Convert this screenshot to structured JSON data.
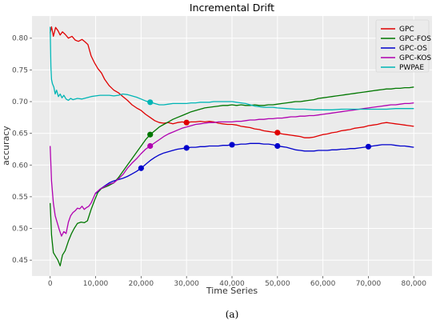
{
  "chart_data": {
    "type": "line",
    "title": "Incremental Drift",
    "xlabel": "Time Series",
    "ylabel": "accuracy",
    "caption": "(a)",
    "xlim": [
      -4000,
      84000
    ],
    "ylim": [
      0.425,
      0.835
    ],
    "xticks": [
      0,
      10000,
      20000,
      30000,
      40000,
      50000,
      60000,
      70000,
      80000
    ],
    "xtick_labels": [
      "0",
      "10,000",
      "20,000",
      "30,000",
      "40,000",
      "50,000",
      "60,000",
      "70,000",
      "80,000"
    ],
    "yticks": [
      0.45,
      0.5,
      0.55,
      0.6,
      0.65,
      0.7,
      0.75,
      0.8
    ],
    "ytick_labels": [
      "0.45",
      "0.50",
      "0.55",
      "0.60",
      "0.65",
      "0.70",
      "0.75",
      "0.80"
    ],
    "grid": true,
    "background": "#ebebeb",
    "legend_position": "top-right",
    "series": [
      {
        "name": "GPC",
        "color": "#e00000",
        "x": [
          0,
          300,
          700,
          1200,
          1700,
          2200,
          2700,
          3300,
          4000,
          4800,
          5500,
          6200,
          7000,
          7700,
          8300,
          9000,
          9700,
          10500,
          11300,
          12000,
          13000,
          14000,
          15000,
          16000,
          17000,
          18000,
          19000,
          20000,
          21000,
          22000,
          23000,
          24000,
          25000,
          26000,
          27000,
          28000,
          29000,
          30000,
          31000,
          32000,
          33000,
          34000,
          35000,
          36000,
          37000,
          38000,
          39000,
          40000,
          41000,
          42000,
          43000,
          44000,
          45000,
          46000,
          47000,
          48000,
          49000,
          50000,
          51000,
          52000,
          53000,
          54000,
          55000,
          56000,
          57000,
          58000,
          59000,
          60000,
          61000,
          62000,
          63000,
          64000,
          65000,
          66000,
          67000,
          68000,
          69000,
          70000,
          71000,
          72000,
          73000,
          74000,
          75000,
          76000,
          77000,
          78000,
          79000,
          80000
        ],
        "y": [
          0.808,
          0.818,
          0.803,
          0.817,
          0.812,
          0.805,
          0.81,
          0.806,
          0.8,
          0.803,
          0.797,
          0.795,
          0.798,
          0.794,
          0.79,
          0.772,
          0.762,
          0.752,
          0.745,
          0.735,
          0.725,
          0.718,
          0.714,
          0.708,
          0.702,
          0.695,
          0.69,
          0.686,
          0.68,
          0.675,
          0.67,
          0.667,
          0.666,
          0.667,
          0.665,
          0.667,
          0.668,
          0.667,
          0.668,
          0.668,
          0.669,
          0.668,
          0.669,
          0.668,
          0.666,
          0.665,
          0.664,
          0.664,
          0.663,
          0.661,
          0.66,
          0.659,
          0.657,
          0.656,
          0.654,
          0.653,
          0.652,
          0.651,
          0.649,
          0.648,
          0.647,
          0.646,
          0.645,
          0.643,
          0.643,
          0.644,
          0.646,
          0.648,
          0.649,
          0.651,
          0.652,
          0.654,
          0.655,
          0.656,
          0.658,
          0.659,
          0.66,
          0.662,
          0.663,
          0.664,
          0.666,
          0.667,
          0.666,
          0.665,
          0.664,
          0.663,
          0.662,
          0.661
        ],
        "markers": [
          [
            30000,
            0.667
          ],
          [
            50000,
            0.651
          ]
        ]
      },
      {
        "name": "GPC-FOS",
        "color": "#007700",
        "x": [
          0,
          300,
          700,
          1200,
          1700,
          2200,
          2700,
          3300,
          4000,
          4700,
          5300,
          6000,
          6800,
          7500,
          8200,
          9000,
          9800,
          10500,
          11300,
          12000,
          13000,
          14000,
          15000,
          16000,
          17000,
          18000,
          19000,
          20000,
          21000,
          22000,
          23000,
          24000,
          25000,
          26000,
          27000,
          28000,
          29000,
          30000,
          31000,
          32000,
          33000,
          34000,
          35000,
          36000,
          37000,
          38000,
          39000,
          40000,
          41000,
          42000,
          43000,
          44000,
          45000,
          46000,
          47000,
          48000,
          49000,
          50000,
          51000,
          52000,
          53000,
          54000,
          55000,
          56000,
          57000,
          58000,
          59000,
          60000,
          61000,
          62000,
          63000,
          64000,
          65000,
          66000,
          67000,
          68000,
          69000,
          70000,
          71000,
          72000,
          73000,
          74000,
          75000,
          76000,
          77000,
          78000,
          79000,
          80000
        ],
        "y": [
          0.54,
          0.49,
          0.462,
          0.456,
          0.45,
          0.441,
          0.458,
          0.465,
          0.48,
          0.492,
          0.5,
          0.508,
          0.51,
          0.509,
          0.512,
          0.53,
          0.545,
          0.557,
          0.563,
          0.565,
          0.568,
          0.572,
          0.58,
          0.59,
          0.6,
          0.61,
          0.62,
          0.63,
          0.64,
          0.648,
          0.654,
          0.66,
          0.664,
          0.668,
          0.672,
          0.675,
          0.678,
          0.681,
          0.684,
          0.686,
          0.688,
          0.69,
          0.691,
          0.692,
          0.693,
          0.694,
          0.694,
          0.695,
          0.694,
          0.695,
          0.694,
          0.694,
          0.695,
          0.694,
          0.694,
          0.695,
          0.695,
          0.696,
          0.697,
          0.698,
          0.699,
          0.7,
          0.7,
          0.701,
          0.702,
          0.703,
          0.705,
          0.706,
          0.707,
          0.708,
          0.709,
          0.71,
          0.711,
          0.712,
          0.713,
          0.714,
          0.715,
          0.716,
          0.717,
          0.718,
          0.719,
          0.72,
          0.72,
          0.721,
          0.721,
          0.722,
          0.722,
          0.723
        ],
        "markers": [
          [
            22000,
            0.648
          ]
        ]
      },
      {
        "name": "GPC-OS",
        "color": "#0000cc",
        "x": [
          10000,
          11000,
          12000,
          13000,
          14000,
          15000,
          16000,
          17000,
          18000,
          19000,
          20000,
          21000,
          22000,
          23000,
          24000,
          25000,
          26000,
          27000,
          28000,
          29000,
          30000,
          31000,
          32000,
          33000,
          34000,
          35000,
          36000,
          37000,
          38000,
          39000,
          40000,
          41000,
          42000,
          43000,
          44000,
          45000,
          46000,
          47000,
          48000,
          49000,
          50000,
          51000,
          52000,
          53000,
          54000,
          55000,
          56000,
          57000,
          58000,
          59000,
          60000,
          61000,
          62000,
          63000,
          64000,
          65000,
          66000,
          67000,
          68000,
          69000,
          70000,
          71000,
          72000,
          73000,
          74000,
          75000,
          76000,
          77000,
          78000,
          79000,
          80000
        ],
        "y": [
          0.555,
          0.562,
          0.567,
          0.572,
          0.575,
          0.577,
          0.579,
          0.582,
          0.586,
          0.59,
          0.595,
          0.601,
          0.607,
          0.612,
          0.616,
          0.619,
          0.621,
          0.623,
          0.625,
          0.626,
          0.627,
          0.628,
          0.628,
          0.629,
          0.629,
          0.63,
          0.63,
          0.63,
          0.631,
          0.631,
          0.632,
          0.632,
          0.633,
          0.633,
          0.634,
          0.634,
          0.634,
          0.633,
          0.633,
          0.632,
          0.63,
          0.629,
          0.628,
          0.626,
          0.624,
          0.623,
          0.622,
          0.622,
          0.622,
          0.623,
          0.623,
          0.623,
          0.624,
          0.624,
          0.625,
          0.625,
          0.626,
          0.626,
          0.627,
          0.628,
          0.629,
          0.63,
          0.631,
          0.632,
          0.632,
          0.632,
          0.631,
          0.63,
          0.63,
          0.629,
          0.628
        ],
        "markers": [
          [
            20000,
            0.595
          ],
          [
            30000,
            0.627
          ],
          [
            40000,
            0.632
          ],
          [
            50000,
            0.63
          ],
          [
            70000,
            0.629
          ]
        ]
      },
      {
        "name": "GPC-KOS",
        "color": "#b000b0",
        "x": [
          0,
          300,
          700,
          1100,
          1500,
          2000,
          2500,
          3000,
          3500,
          4000,
          4500,
          5000,
          5500,
          6000,
          6500,
          7000,
          7500,
          8000,
          8500,
          9000,
          9500,
          10000,
          11000,
          12000,
          13000,
          14000,
          15000,
          16000,
          17000,
          18000,
          19000,
          20000,
          21000,
          22000,
          23000,
          24000,
          25000,
          26000,
          27000,
          28000,
          29000,
          30000,
          31000,
          32000,
          33000,
          34000,
          35000,
          36000,
          37000,
          38000,
          39000,
          40000,
          41000,
          42000,
          43000,
          44000,
          45000,
          46000,
          47000,
          48000,
          49000,
          50000,
          51000,
          52000,
          53000,
          54000,
          55000,
          56000,
          57000,
          58000,
          59000,
          60000,
          61000,
          62000,
          63000,
          64000,
          65000,
          66000,
          67000,
          68000,
          69000,
          70000,
          71000,
          72000,
          73000,
          74000,
          75000,
          76000,
          77000,
          78000,
          79000,
          80000
        ],
        "y": [
          0.63,
          0.575,
          0.54,
          0.52,
          0.51,
          0.498,
          0.488,
          0.495,
          0.492,
          0.51,
          0.52,
          0.525,
          0.528,
          0.532,
          0.531,
          0.535,
          0.53,
          0.533,
          0.535,
          0.54,
          0.548,
          0.556,
          0.562,
          0.566,
          0.57,
          0.572,
          0.578,
          0.585,
          0.595,
          0.603,
          0.61,
          0.618,
          0.625,
          0.63,
          0.635,
          0.64,
          0.645,
          0.649,
          0.652,
          0.655,
          0.658,
          0.66,
          0.662,
          0.664,
          0.665,
          0.666,
          0.667,
          0.667,
          0.668,
          0.668,
          0.668,
          0.668,
          0.669,
          0.669,
          0.67,
          0.671,
          0.671,
          0.672,
          0.672,
          0.673,
          0.673,
          0.674,
          0.674,
          0.675,
          0.676,
          0.676,
          0.677,
          0.677,
          0.678,
          0.678,
          0.679,
          0.68,
          0.681,
          0.682,
          0.683,
          0.684,
          0.685,
          0.686,
          0.687,
          0.688,
          0.689,
          0.69,
          0.691,
          0.692,
          0.693,
          0.694,
          0.695,
          0.695,
          0.696,
          0.697,
          0.697,
          0.698
        ],
        "markers": [
          [
            22000,
            0.63
          ]
        ]
      },
      {
        "name": "PWPAE",
        "color": "#00b5b5",
        "x": [
          0,
          150,
          300,
          500,
          800,
          1100,
          1400,
          1800,
          2200,
          2600,
          3000,
          3500,
          4000,
          4500,
          5000,
          6000,
          7000,
          8000,
          9000,
          10000,
          11000,
          12000,
          13000,
          14000,
          15000,
          16000,
          17000,
          18000,
          19000,
          20000,
          21000,
          22000,
          23000,
          24000,
          25000,
          26000,
          27000,
          28000,
          29000,
          30000,
          31000,
          32000,
          33000,
          34000,
          35000,
          36000,
          37000,
          38000,
          39000,
          40000,
          41000,
          42000,
          43000,
          44000,
          45000,
          46000,
          47000,
          48000,
          49000,
          50000,
          52000,
          54000,
          56000,
          58000,
          60000,
          62000,
          64000,
          66000,
          68000,
          70000,
          72000,
          74000,
          76000,
          78000,
          80000
        ],
        "y": [
          0.818,
          0.755,
          0.735,
          0.728,
          0.723,
          0.712,
          0.718,
          0.708,
          0.712,
          0.706,
          0.71,
          0.704,
          0.702,
          0.705,
          0.703,
          0.705,
          0.704,
          0.706,
          0.708,
          0.709,
          0.71,
          0.71,
          0.71,
          0.709,
          0.71,
          0.712,
          0.711,
          0.709,
          0.707,
          0.704,
          0.701,
          0.699,
          0.697,
          0.695,
          0.695,
          0.696,
          0.697,
          0.697,
          0.697,
          0.697,
          0.698,
          0.698,
          0.699,
          0.699,
          0.699,
          0.7,
          0.7,
          0.7,
          0.7,
          0.7,
          0.699,
          0.698,
          0.697,
          0.695,
          0.693,
          0.692,
          0.691,
          0.691,
          0.691,
          0.69,
          0.689,
          0.688,
          0.688,
          0.687,
          0.687,
          0.687,
          0.688,
          0.688,
          0.688,
          0.688,
          0.688,
          0.688,
          0.689,
          0.689,
          0.689
        ],
        "markers": [
          [
            22000,
            0.699
          ]
        ]
      }
    ]
  }
}
